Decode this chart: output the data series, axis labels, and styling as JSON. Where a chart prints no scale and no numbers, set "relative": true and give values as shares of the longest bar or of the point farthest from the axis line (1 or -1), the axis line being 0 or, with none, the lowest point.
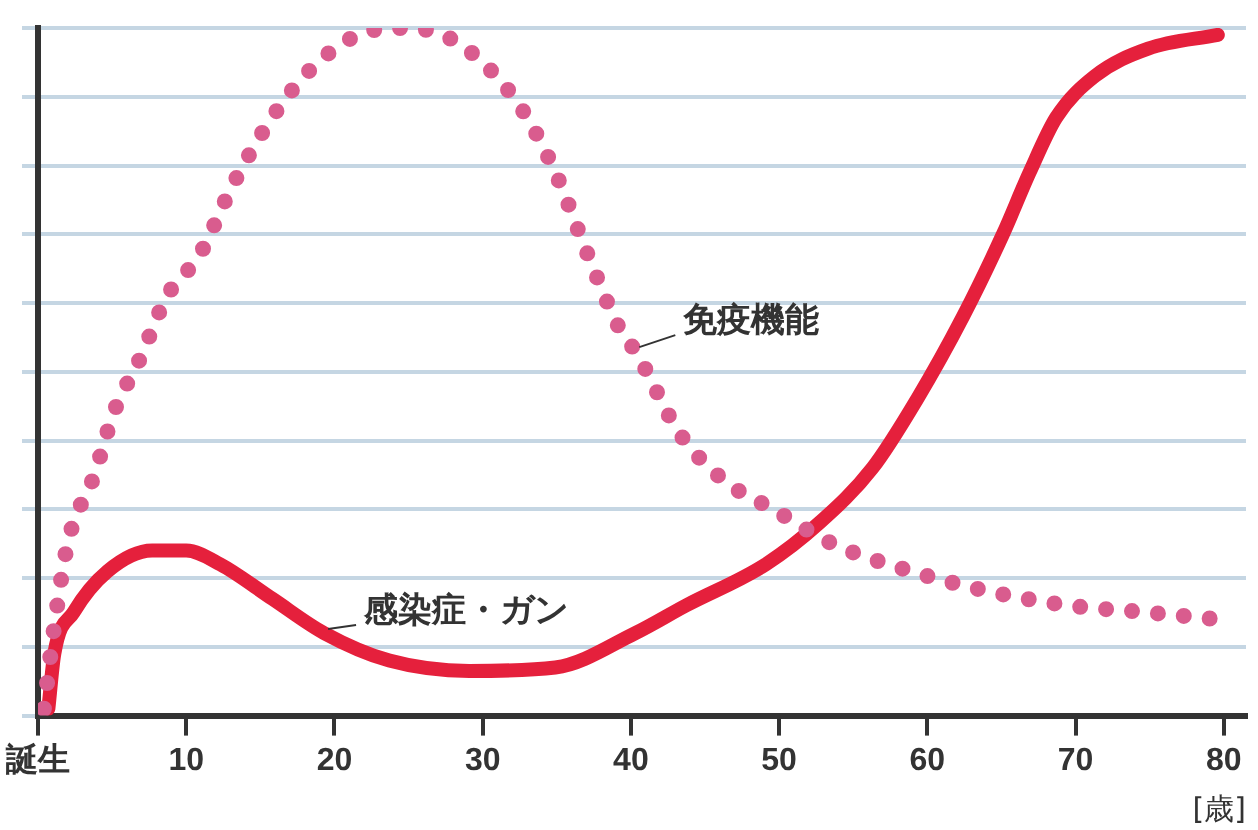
{
  "chart_data": {
    "type": "line",
    "relative": true,
    "xlabel": "[歳]",
    "xlim": [
      0,
      81.5
    ],
    "xticks": [
      {
        "value": 0,
        "label": "誕生"
      },
      10,
      20,
      30,
      40,
      50,
      60,
      70,
      80
    ],
    "tick_labels": "x",
    "grid": "y",
    "legend": false,
    "marker": "none",
    "series": [
      {
        "name": "免疫機能",
        "color": "#d95c8e",
        "line_style": "dotted",
        "x": [
          0.4,
          1.1,
          2.0,
          3.8,
          5.1,
          6.9,
          8.7,
          10.9,
          13.1,
          15.8,
          18.4,
          21.6,
          24.7,
          27.3,
          30,
          32.7,
          34.9,
          37.1,
          39.3,
          40.3,
          43.3,
          46.4,
          49.6,
          53.6,
          58.9,
          64.3,
          69.6,
          74.9,
          79.6
        ],
        "values": [
          0.01,
          0.13,
          0.25,
          0.35,
          0.44,
          0.52,
          0.61,
          0.67,
          0.77,
          0.87,
          0.94,
          0.99,
          1,
          0.99,
          0.95,
          0.88,
          0.79,
          0.67,
          0.56,
          0.53,
          0.41,
          0.34,
          0.3,
          0.25,
          0.21,
          0.18,
          0.16,
          0.15,
          0.14
        ]
      },
      {
        "name": "感染症・ガン",
        "color": "#e5203c",
        "line_style": "solid",
        "x": [
          0.7,
          1.1,
          2.4,
          4.7,
          7.7,
          10,
          12.3,
          15.8,
          19.3,
          23.7,
          29.1,
          34.9,
          40.3,
          43.7,
          49.1,
          52.7,
          56.3,
          59.3,
          62.4,
          65.1,
          66.9,
          68.7,
          71.3,
          74.9,
          79.6
        ],
        "values": [
          0.01,
          0.09,
          0.15,
          0.21,
          0.24,
          0.24,
          0.22,
          0.17,
          0.12,
          0.08,
          0.065,
          0.07,
          0.12,
          0.16,
          0.22,
          0.28,
          0.36,
          0.46,
          0.58,
          0.7,
          0.79,
          0.87,
          0.93,
          0.97,
          0.99
        ]
      }
    ]
  }
}
